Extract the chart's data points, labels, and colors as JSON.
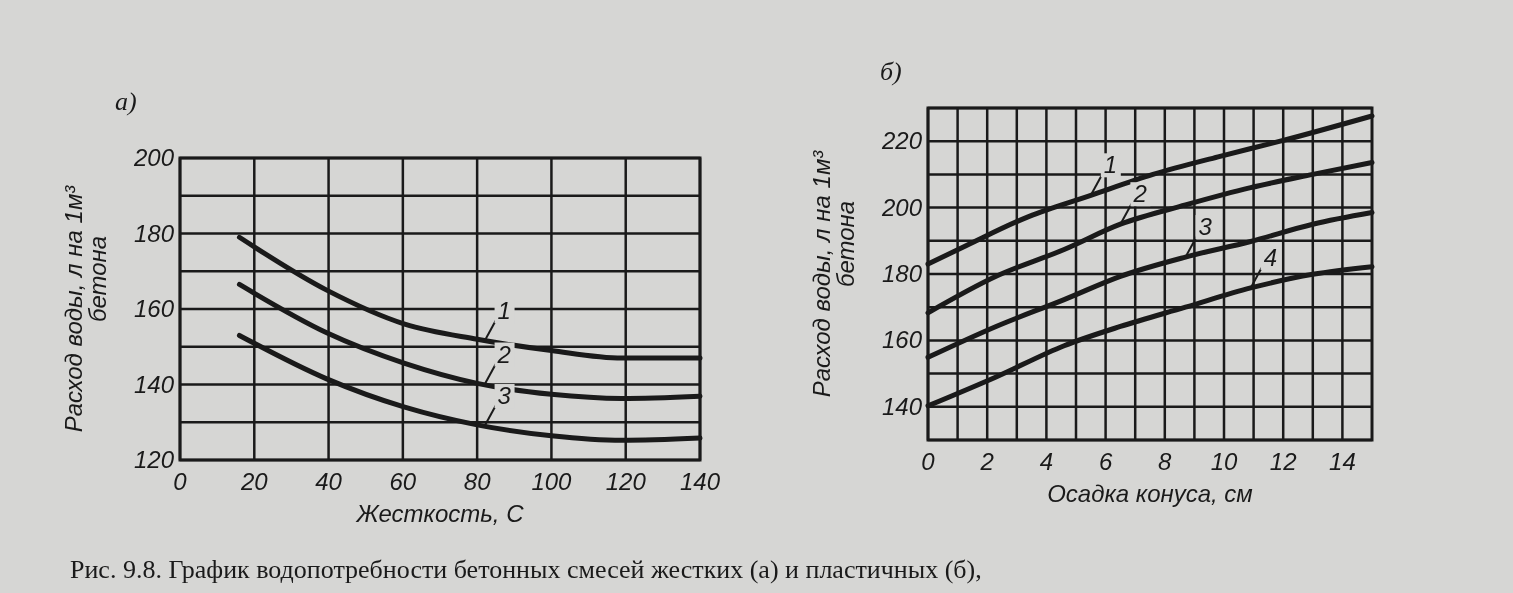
{
  "chart_data": [
    {
      "type": "line",
      "title": "а)",
      "xlabel": "Жесткость, С",
      "ylabel": "Расход воды, л на 1м³ бетона",
      "xlim": [
        0,
        140
      ],
      "ylim": [
        120,
        200
      ],
      "xticks": [
        0,
        20,
        40,
        60,
        80,
        100,
        120,
        140
      ],
      "yticks": [
        120,
        {
          "value": 130,
          "label": null
        },
        140,
        {
          "value": 150,
          "label": null
        },
        160,
        {
          "value": 170,
          "label": null
        },
        180,
        {
          "value": 190,
          "label": null
        },
        200
      ],
      "grid": true,
      "line_style": "solid",
      "series": [
        {
          "color": "#1a1a1a",
          "x": [
            16,
            39.5,
            60.5,
            80,
            100,
            119,
            140
          ],
          "values": [
            179,
            165,
            156,
            152,
            149,
            147,
            147
          ]
        },
        {
          "color": "#1a1a1a",
          "x": [
            16,
            39.5,
            60.5,
            80,
            100,
            119,
            140
          ],
          "values": [
            166.5,
            153.7,
            145.6,
            140.3,
            137.4,
            136.3,
            136.9
          ]
        },
        {
          "color": "#1a1a1a",
          "x": [
            16,
            39.5,
            60.5,
            80,
            100,
            119,
            140
          ],
          "values": [
            153,
            141.5,
            134,
            129.3,
            126.4,
            125.2,
            125.8
          ]
        }
      ],
      "annotations": [
        {
          "text": "1",
          "x": 82,
          "y": 151.5
        },
        {
          "text": "2",
          "x": 82,
          "y": 140
        },
        {
          "text": "3",
          "x": 82,
          "y": 129
        },
        "Рис. 9.8. График водопотребности бетонных смесей жестких (а) и пластичных (б),"
      ]
    },
    {
      "type": "line",
      "title": "б)",
      "xlabel": "Осадка конуса, см",
      "ylabel": "Расход воды, л на 1м³ бетона",
      "xlim": [
        0,
        15
      ],
      "ylim": [
        130,
        230
      ],
      "xticks": [
        0,
        {
          "value": 1,
          "label": null
        },
        2,
        {
          "value": 3,
          "label": null
        },
        4,
        {
          "value": 5,
          "label": null
        },
        6,
        {
          "value": 7,
          "label": null
        },
        8,
        {
          "value": 9,
          "label": null
        },
        10,
        {
          "value": 11,
          "label": null
        },
        12,
        {
          "value": 13,
          "label": null
        },
        14
      ],
      "yticks": [
        {
          "value": 130,
          "label": null
        },
        140,
        {
          "value": 150,
          "label": null
        },
        160,
        {
          "value": 170,
          "label": null
        },
        180,
        {
          "value": 190,
          "label": null
        },
        200,
        {
          "value": 210,
          "label": null
        },
        220,
        {
          "value": 230,
          "label": null
        }
      ],
      "grid": true,
      "line_style": "solid",
      "series": [
        {
          "color": "#1a1a1a",
          "x": [
            0,
            1.3,
            3.4,
            5.5,
            7.6,
            9.8,
            11.9,
            15
          ],
          "values": [
            183,
            188.6,
            197.3,
            203.7,
            210,
            215.3,
            220,
            227.6
          ]
        },
        {
          "color": "#1a1a1a",
          "x": [
            0,
            2.3,
            4.6,
            6.5,
            8.7,
            10.9,
            13,
            15
          ],
          "values": [
            168.3,
            179.3,
            187.4,
            195,
            200.8,
            206,
            210,
            213.6
          ]
        },
        {
          "color": "#1a1a1a",
          "x": [
            0,
            2.3,
            4.6,
            6.5,
            8.7,
            10.9,
            13,
            15
          ],
          "values": [
            154.9,
            164.2,
            172.3,
            179.3,
            185.1,
            189.8,
            195,
            198.5
          ]
        },
        {
          "color": "#1a1a1a",
          "x": [
            0,
            2.3,
            4.6,
            6.5,
            8.7,
            10.9,
            13,
            15
          ],
          "values": [
            140.3,
            149,
            158.4,
            164.2,
            170,
            175.8,
            179.9,
            182.2
          ]
        }
      ],
      "annotations": [
        {
          "text": "1",
          "x": 5.5,
          "y": 203.7
        },
        {
          "text": "2",
          "x": 6.5,
          "y": 195
        },
        {
          "text": "3",
          "x": 8.7,
          "y": 185.1
        },
        {
          "text": "4",
          "x": 10.9,
          "y": 175.8
        }
      ]
    }
  ]
}
